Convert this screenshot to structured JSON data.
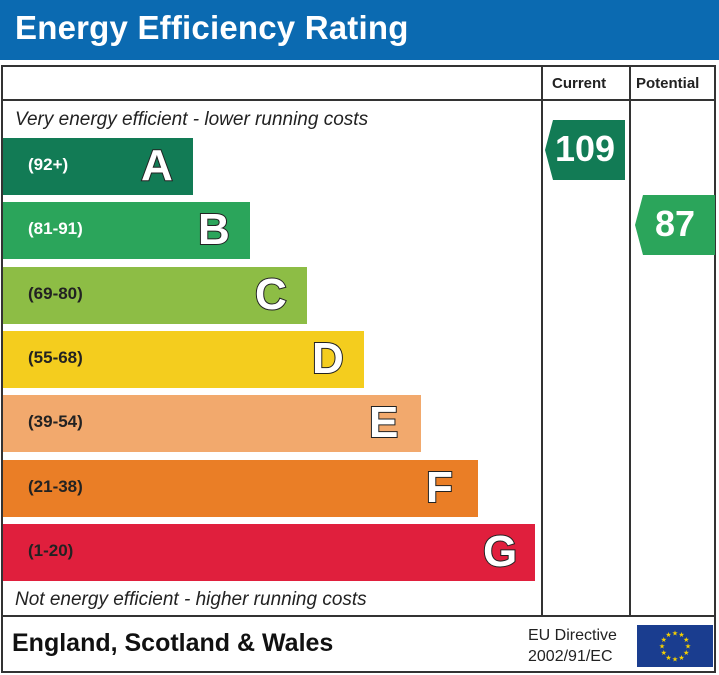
{
  "header": {
    "title": "Energy Efficiency Rating"
  },
  "columns": {
    "current": "Current",
    "potential": "Potential"
  },
  "captions": {
    "top": "Very energy efficient - lower running costs",
    "bottom": "Not energy efficient - higher running costs"
  },
  "footer": {
    "region": "England, Scotland & Wales",
    "directive_line1": "EU Directive",
    "directive_line2": "2002/91/EC",
    "flag_icon": "eu-flag-icon"
  },
  "chart_data": {
    "type": "bar",
    "title": "Energy Efficiency Rating",
    "categories": [
      "A",
      "B",
      "C",
      "D",
      "E",
      "F",
      "G"
    ],
    "ranges": [
      "(92+)",
      "(81-91)",
      "(69-80)",
      "(55-68)",
      "(39-54)",
      "(21-38)",
      "(1-20)"
    ],
    "colors": [
      "#127b55",
      "#2ba55b",
      "#8dbd45",
      "#f4cd1e",
      "#f2a96d",
      "#ea7e26",
      "#e01f3d"
    ],
    "range_text_colors": [
      "#ffffff",
      "#ffffff",
      "#222222",
      "#222222",
      "#222222",
      "#222222",
      "#222222"
    ],
    "current": {
      "value": 109,
      "band": "A",
      "color": "#127b55"
    },
    "potential": {
      "value": 87,
      "band": "B",
      "color": "#2ba55b"
    }
  }
}
